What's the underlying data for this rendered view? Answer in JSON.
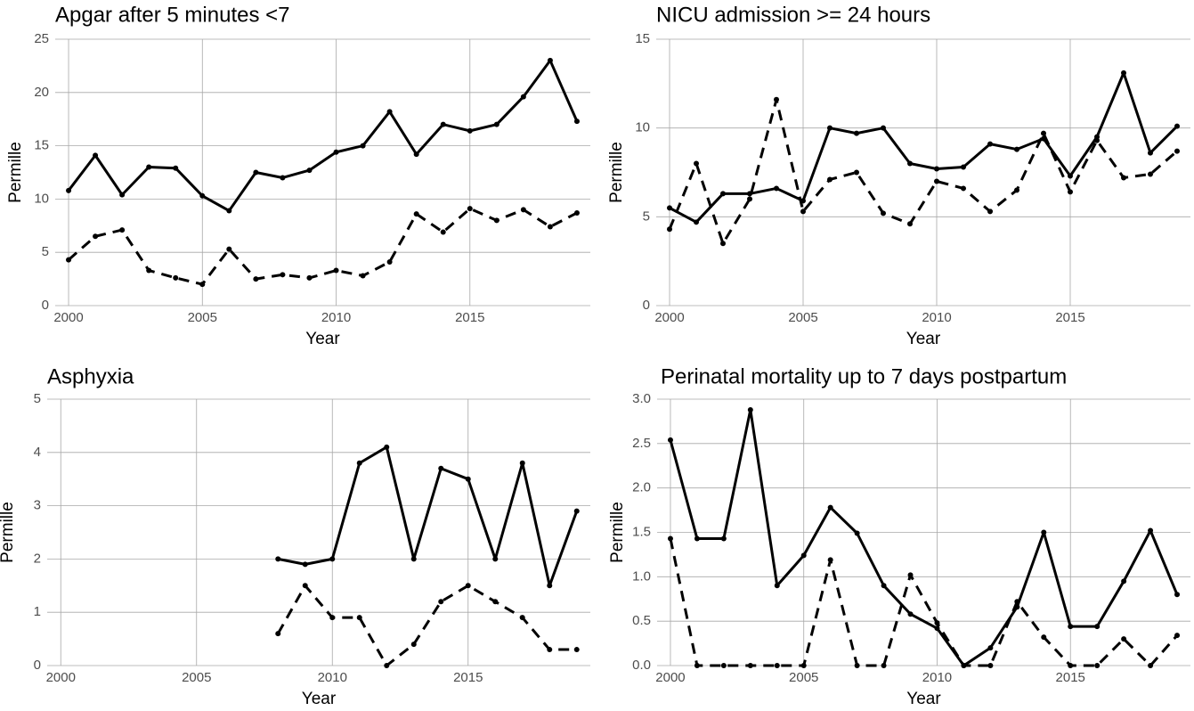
{
  "chart_data": [
    {
      "type": "line",
      "title": "Apgar after 5 minutes <7",
      "x_label": "Year",
      "y_label": "Permille",
      "x": [
        2000,
        2001,
        2002,
        2003,
        2004,
        2005,
        2006,
        2007,
        2008,
        2009,
        2010,
        2011,
        2012,
        2013,
        2014,
        2015,
        2016,
        2017,
        2018,
        2019
      ],
      "series": [
        {
          "color": "#000000",
          "dash": "solid",
          "values": [
            10.8,
            14.1,
            10.4,
            13.0,
            12.9,
            10.3,
            8.9,
            12.5,
            12.0,
            12.7,
            14.4,
            15.0,
            18.2,
            14.2,
            17.0,
            16.4,
            17.0,
            19.6,
            23.0,
            17.3
          ]
        },
        {
          "color": "#000000",
          "dash": "dashed",
          "values": [
            4.3,
            6.5,
            7.1,
            3.3,
            2.6,
            2.0,
            5.3,
            2.5,
            2.9,
            2.6,
            3.3,
            2.8,
            4.1,
            8.6,
            6.9,
            9.1,
            8.0,
            9.0,
            7.4,
            8.7
          ]
        }
      ],
      "xlim": [
        1999.5,
        2019.5
      ],
      "xticks": [
        2000,
        2005,
        2010,
        2015
      ],
      "ylim": [
        0,
        25
      ],
      "yticks": [
        0,
        5,
        10,
        15,
        20,
        25
      ],
      "grid": true
    },
    {
      "type": "line",
      "title": "NICU admission >= 24 hours",
      "x_label": "Year",
      "y_label": "Permille",
      "x": [
        2000,
        2001,
        2002,
        2003,
        2004,
        2005,
        2006,
        2007,
        2008,
        2009,
        2010,
        2011,
        2012,
        2013,
        2014,
        2015,
        2016,
        2017,
        2018,
        2019
      ],
      "series": [
        {
          "color": "#000000",
          "dash": "solid",
          "values": [
            5.5,
            4.7,
            6.3,
            6.3,
            6.6,
            5.9,
            10.0,
            9.7,
            10.0,
            8.0,
            7.7,
            7.8,
            9.1,
            8.8,
            9.4,
            7.3,
            9.5,
            13.1,
            8.6,
            10.1
          ]
        },
        {
          "color": "#000000",
          "dash": "dashed",
          "values": [
            4.3,
            8.0,
            3.5,
            6.0,
            11.6,
            5.3,
            7.1,
            7.5,
            5.2,
            4.6,
            7.0,
            6.6,
            5.3,
            6.5,
            9.7,
            6.4,
            9.3,
            7.2,
            7.4,
            8.7
          ]
        }
      ],
      "xlim": [
        1999.5,
        2019.5
      ],
      "xticks": [
        2000,
        2005,
        2010,
        2015
      ],
      "ylim": [
        0,
        15
      ],
      "yticks": [
        0,
        5,
        10,
        15
      ],
      "grid": true
    },
    {
      "type": "line",
      "title": "Asphyxia",
      "x_label": "Year",
      "y_label": "Permille",
      "x": [
        2000,
        2001,
        2002,
        2003,
        2004,
        2005,
        2006,
        2007,
        2008,
        2009,
        2010,
        2011,
        2012,
        2013,
        2014,
        2015,
        2016,
        2017,
        2018,
        2019
      ],
      "series": [
        {
          "color": "#000000",
          "dash": "solid",
          "values": [
            null,
            null,
            null,
            null,
            null,
            null,
            null,
            null,
            2.0,
            1.9,
            2.0,
            3.8,
            4.1,
            2.0,
            3.7,
            3.5,
            2.0,
            3.8,
            1.5,
            2.9
          ]
        },
        {
          "color": "#000000",
          "dash": "dashed",
          "values": [
            null,
            null,
            null,
            null,
            null,
            null,
            null,
            null,
            0.6,
            1.5,
            0.9,
            0.9,
            0.0,
            0.4,
            1.2,
            1.5,
            1.2,
            0.9,
            0.3,
            0.3
          ]
        }
      ],
      "xlim": [
        1999.5,
        2019.5
      ],
      "xticks": [
        2000,
        2005,
        2010,
        2015
      ],
      "ylim": [
        0,
        5
      ],
      "yticks": [
        0,
        1,
        2,
        3,
        4,
        5
      ],
      "grid": true
    },
    {
      "type": "line",
      "title": "Perinatal mortality up to 7 days postpartum",
      "x_label": "Year",
      "y_label": "Permille",
      "x": [
        2000,
        2001,
        2002,
        2003,
        2004,
        2005,
        2006,
        2007,
        2008,
        2009,
        2010,
        2011,
        2012,
        2013,
        2014,
        2015,
        2016,
        2017,
        2018,
        2019
      ],
      "series": [
        {
          "color": "#000000",
          "dash": "solid",
          "values": [
            2.54,
            1.43,
            1.43,
            2.88,
            0.9,
            1.24,
            1.78,
            1.49,
            0.9,
            0.58,
            0.42,
            0.0,
            0.2,
            0.66,
            1.5,
            0.44,
            0.44,
            0.95,
            1.52,
            0.8
          ]
        },
        {
          "color": "#000000",
          "dash": "dashed",
          "values": [
            1.43,
            0,
            0,
            0,
            0,
            0,
            1.19,
            0,
            0,
            1.02,
            0.48,
            0,
            0,
            0.72,
            0.32,
            0,
            0,
            0.3,
            0,
            0.34
          ]
        }
      ],
      "xlim": [
        1999.5,
        2019.5
      ],
      "xticks": [
        2000,
        2005,
        2010,
        2015
      ],
      "ylim": [
        0,
        3
      ],
      "yticks": [
        {
          "value": 0,
          "label": "0.0"
        },
        0.5,
        {
          "value": 1,
          "label": "1.0"
        },
        1.5,
        {
          "value": 2,
          "label": "2.0"
        },
        2.5,
        {
          "value": 3,
          "label": "3.0"
        }
      ],
      "grid": true
    }
  ]
}
